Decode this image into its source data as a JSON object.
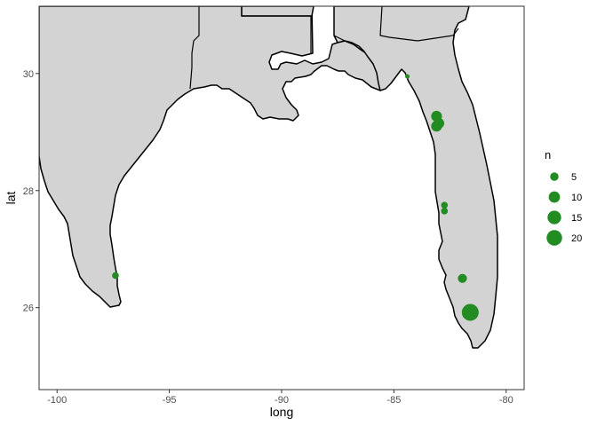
{
  "chart_data": {
    "type": "scatter",
    "subtype": "map-bubble",
    "title": "",
    "xlabel": "long",
    "ylabel": "lat",
    "xlim": [
      -100.8,
      -79.2
    ],
    "ylim": [
      24.6,
      31.15
    ],
    "x_ticks": [
      -100,
      -95,
      -90,
      -85,
      -80
    ],
    "x_tick_labels": [
      "-100",
      "-95",
      "-90",
      "-85",
      "-80"
    ],
    "y_ticks": [
      26,
      28,
      30
    ],
    "y_tick_labels": [
      "26",
      "28",
      "30"
    ],
    "grid": false,
    "background": "#ffffff",
    "land_fill": "#d3d3d3",
    "land_outline": "#000000",
    "point_color": "#228b22",
    "points": [
      {
        "long": -97.4,
        "lat": 26.55,
        "n": 3
      },
      {
        "long": -84.4,
        "lat": 29.95,
        "n": 1
      },
      {
        "long": -83.1,
        "lat": 29.27,
        "n": 9
      },
      {
        "long": -83.0,
        "lat": 29.15,
        "n": 9
      },
      {
        "long": -83.1,
        "lat": 29.1,
        "n": 9
      },
      {
        "long": -82.75,
        "lat": 27.75,
        "n": 3
      },
      {
        "long": -82.75,
        "lat": 27.65,
        "n": 3
      },
      {
        "long": -81.95,
        "lat": 26.5,
        "n": 6
      },
      {
        "long": -81.6,
        "lat": 25.92,
        "n": 24
      }
    ],
    "legend": {
      "title": "n",
      "position": "right",
      "entries": [
        {
          "label": "5",
          "value": 5
        },
        {
          "label": "10",
          "value": 10
        },
        {
          "label": "15",
          "value": 15
        },
        {
          "label": "20",
          "value": 20
        }
      ]
    }
  }
}
